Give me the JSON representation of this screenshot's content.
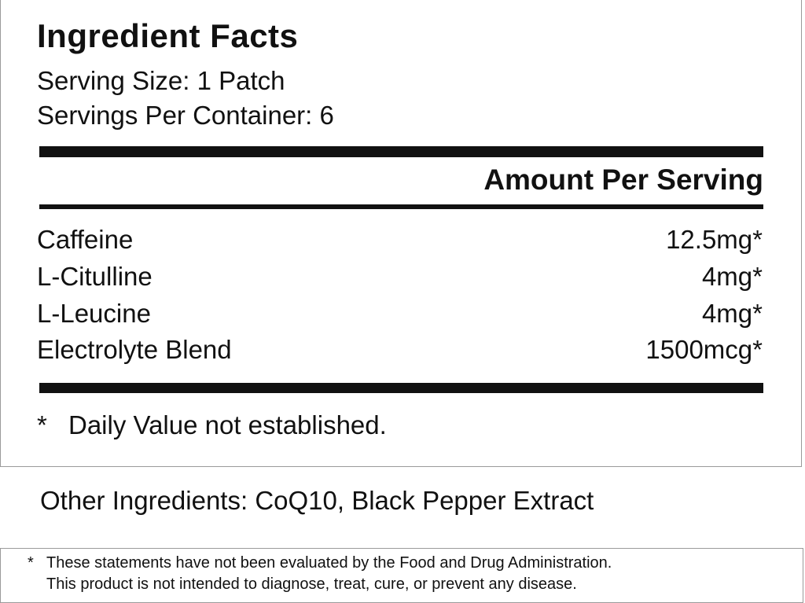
{
  "title": "Ingredient Facts",
  "serving_size": "Serving Size: 1 Patch",
  "servings_per_container": "Servings Per Container: 6",
  "amount_header": "Amount Per Serving",
  "ingredients": [
    {
      "name": "Caffeine",
      "amount": "12.5mg*"
    },
    {
      "name": "L-Citulline",
      "amount": "4mg*"
    },
    {
      "name": "L-Leucine",
      "amount": "4mg*"
    },
    {
      "name": "Electrolyte Blend",
      "amount": "1500mcg*"
    }
  ],
  "footnote": {
    "symbol": "*",
    "text": "Daily Value not established."
  },
  "other_ingredients": "Other Ingredients: CoQ10, Black Pepper Extract",
  "disclaimer": {
    "symbol": "*",
    "line1": "These statements have not been evaluated by the Food and Drug Administration.",
    "line2": "This product is not intended to diagnose, treat, cure, or prevent any disease."
  }
}
